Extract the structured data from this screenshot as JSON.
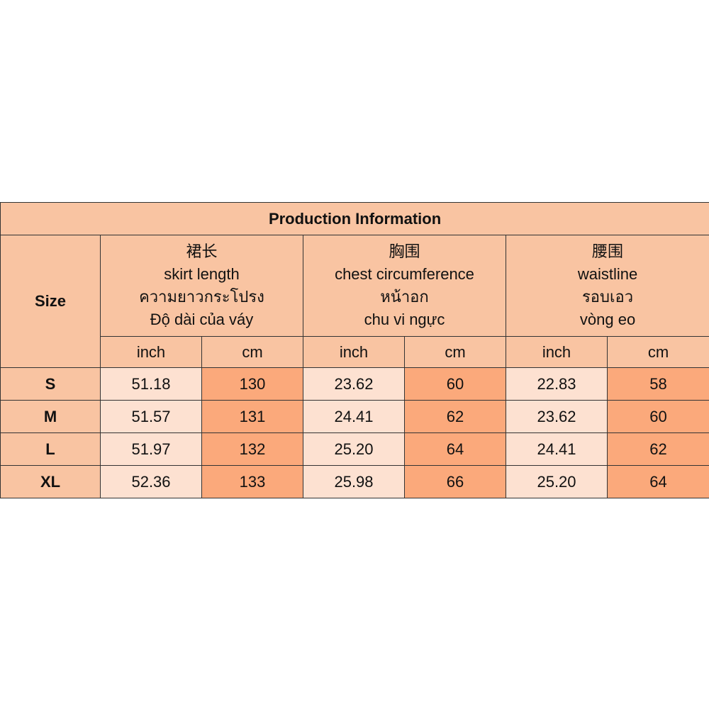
{
  "title": "Production Information",
  "size_header": "Size",
  "groups": [
    {
      "lines": [
        "裙长",
        "skirt length",
        "ความยาวกระโปรง",
        "Độ dài của váy"
      ],
      "units": [
        "inch",
        "cm"
      ]
    },
    {
      "lines": [
        "胸围",
        "chest circumference",
        "หน้าอก",
        "chu vi ngực"
      ],
      "units": [
        "inch",
        "cm"
      ]
    },
    {
      "lines": [
        "腰围",
        "waistline",
        "รอบเอว",
        "vòng eo"
      ],
      "units": [
        "inch",
        "cm"
      ]
    }
  ],
  "rows": [
    {
      "size": "S",
      "cells": [
        "51.18",
        "130",
        "23.62",
        "60",
        "22.83",
        "58"
      ]
    },
    {
      "size": "M",
      "cells": [
        "51.57",
        "131",
        "24.41",
        "62",
        "23.62",
        "60"
      ]
    },
    {
      "size": "L",
      "cells": [
        "51.97",
        "132",
        "25.20",
        "64",
        "24.41",
        "62"
      ]
    },
    {
      "size": "XL",
      "cells": [
        "52.36",
        "133",
        "25.98",
        "66",
        "25.20",
        "64"
      ]
    }
  ]
}
